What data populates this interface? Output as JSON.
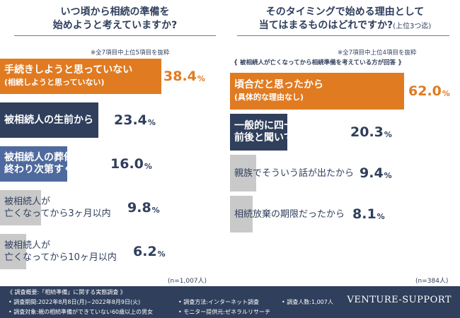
{
  "left": {
    "title_lines": [
      "いつ頃から相続の準備を",
      "始めようと考えていますか?"
    ],
    "note": "※全7項目中上位5項目を抜粋",
    "n": "(n=1,007人)",
    "bars": [
      {
        "label1": "手続きしようと思っていない",
        "label2": "(相続しようと思っていない)",
        "value": "38.4",
        "style": "orange"
      },
      {
        "label1": "被相続人の生前から",
        "label2": "",
        "value": "23.4",
        "style": "navy"
      },
      {
        "label1": "被相続人の葬儀が",
        "label2": "終わり次第すぐに",
        "value": "16.0",
        "style": "blue"
      },
      {
        "label1": "被相続人が",
        "label2": "亡くなってから3ヶ月以内",
        "value": "9.8",
        "style": "gray"
      },
      {
        "label1": "被相続人が",
        "label2": "亡くなってから10ヶ月以内",
        "value": "6.2",
        "style": "gray"
      }
    ]
  },
  "right": {
    "title_lines": [
      "そのタイミングで始める理由として",
      "当てはまるものはどれですか?"
    ],
    "title_suffix": "(上位3つ迄)",
    "note": "※全7項目中上位4項目を抜粋",
    "subnote": "{ 被相続人が亡くなってから相続準備を考えている方が回答 }",
    "n": "(n=384人)",
    "bars": [
      {
        "label1": "頃合だと思ったから",
        "label2": "(具体的な理由なし)",
        "value": "62.0",
        "style": "orange"
      },
      {
        "label1": "一般的に四十九日法要",
        "label2": "前後と聞いていたから",
        "value": "20.3",
        "style": "navy"
      },
      {
        "label1": "親族でそういう話が出たから",
        "label2": "",
        "value": "9.4",
        "style": "gray"
      },
      {
        "label1": "相続放棄の期限だったから",
        "label2": "",
        "value": "8.1",
        "style": "gray"
      }
    ]
  },
  "chart_data": [
    {
      "type": "bar",
      "title": "いつ頃から相続の準備を始めようと考えていますか?",
      "categories": [
        "手続きしようと思っていない(相続しようと思っていない)",
        "被相続人の生前から",
        "被相続人の葬儀が終わり次第すぐに",
        "被相続人が亡くなってから3ヶ月以内",
        "被相続人が亡くなってから10ヶ月以内"
      ],
      "values": [
        38.4,
        23.4,
        16.0,
        9.8,
        6.2
      ],
      "unit": "%",
      "orientation": "horizontal",
      "grid": false
    },
    {
      "type": "bar",
      "title": "そのタイミングで始める理由として当てはまるものはどれですか?(上位3つ迄)",
      "categories": [
        "頃合だと思ったから(具体的な理由なし)",
        "一般的に四十九日法要前後と聞いていたから",
        "親族でそういう話が出たから",
        "相続放棄の期限だったから"
      ],
      "values": [
        62.0,
        20.3,
        9.4,
        8.1
      ],
      "unit": "%",
      "orientation": "horizontal",
      "grid": false
    }
  ],
  "colors": {
    "orange": "#e07b22",
    "navy": "#2f3f5c",
    "blue": "#4f6a9e",
    "gray": "#c9c9c9",
    "text_dark": "#2f3f5c",
    "footer_bg": "#2f3f5c"
  },
  "footer": {
    "l1": "《 調査概要:「相続準備」に関する実態調査 》",
    "l2": "• 調査期間:2022年8月8日(月)~2022年8月9日(火)",
    "l3": "• 調査対象:親の相続準備ができていない60歳以上の男女",
    "m1": "• 調査方法:インターネット調査",
    "m2": "• モニター提供元:ゼネラルリサーチ",
    "r1": "• 調査人数:1,007人",
    "brand": "VENTURE-SUPPORT"
  }
}
